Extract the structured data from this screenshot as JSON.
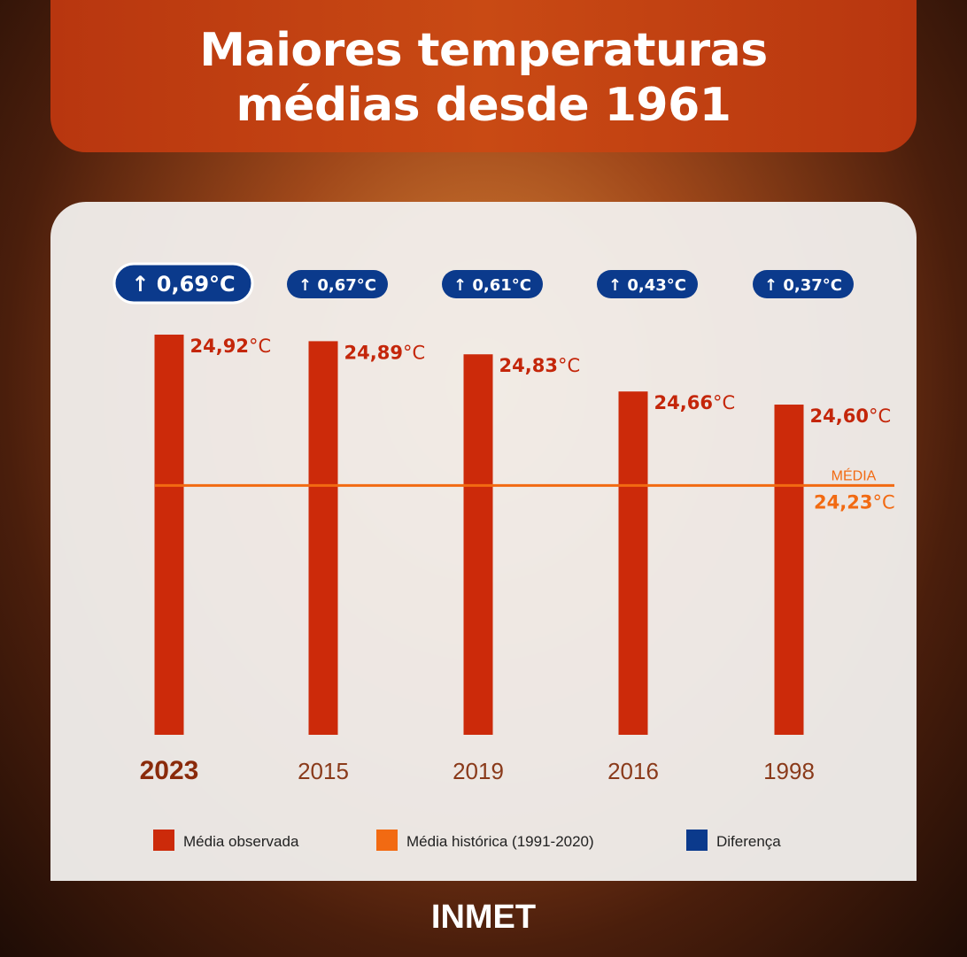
{
  "title_line1": "Maiores temperaturas",
  "title_line2": "médias desde 1961",
  "footer": "INMET",
  "colors": {
    "observed": "#cc2a0a",
    "historical": "#f26a12",
    "difference": "#0b3a8c"
  },
  "chart_data": {
    "type": "bar",
    "title": "Maiores temperaturas médias desde 1961",
    "categories": [
      "2023",
      "2015",
      "2019",
      "2016",
      "1998"
    ],
    "values": [
      24.92,
      24.89,
      24.83,
      24.66,
      24.6
    ],
    "value_labels": [
      "24,92",
      "24,89",
      "24,83",
      "24,66",
      "24,60"
    ],
    "differences": [
      0.69,
      0.67,
      0.61,
      0.43,
      0.37
    ],
    "difference_labels": [
      "0,69°C",
      "0,67°C",
      "0,61°C",
      "0,43°C",
      "0,37°C"
    ],
    "unit": "°C",
    "reference": {
      "label": "MÉDIA",
      "value": 24.23,
      "value_label": "24,23"
    },
    "legend": [
      "Média observada",
      "Média histórica (1991-2020)",
      "Diferença"
    ],
    "legend_placement": "bottom",
    "grid": false
  }
}
